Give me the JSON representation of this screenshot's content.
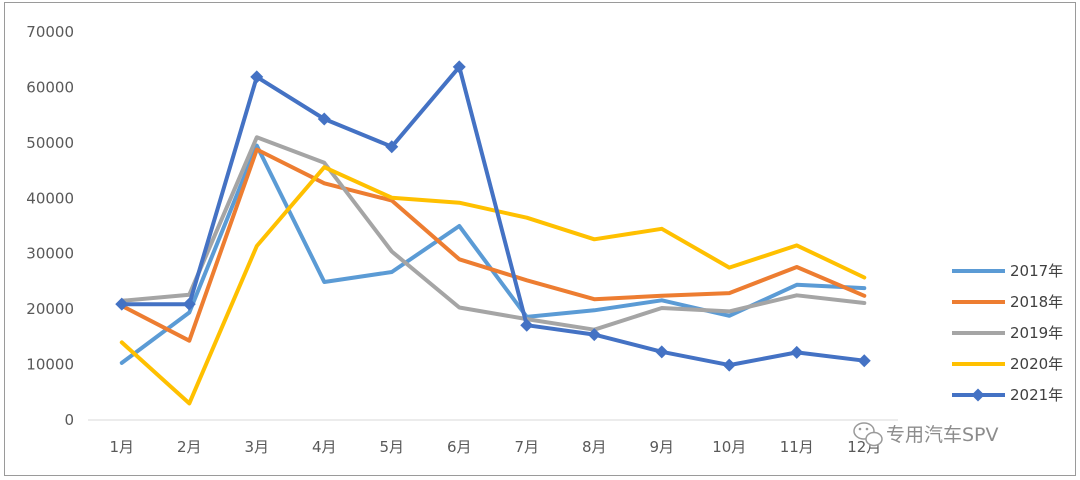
{
  "chart_data": {
    "type": "line",
    "title": "",
    "xlabel": "",
    "ylabel": "",
    "categories": [
      "1月",
      "2月",
      "3月",
      "4月",
      "5月",
      "6月",
      "7月",
      "8月",
      "9月",
      "10月",
      "11月",
      "12月"
    ],
    "ylim": [
      0,
      70000
    ],
    "yticks": [
      0,
      10000,
      20000,
      30000,
      40000,
      50000,
      60000,
      70000
    ],
    "grid": false,
    "legend_position": "right",
    "series": [
      {
        "name": "2017年",
        "color": "#5b9bd5",
        "marker": "none",
        "values": [
          10300,
          19400,
          49500,
          24900,
          26700,
          35000,
          18600,
          19800,
          21600,
          18800,
          24400,
          23800
        ]
      },
      {
        "name": "2018年",
        "color": "#ed7d31",
        "marker": "none",
        "values": [
          20600,
          14300,
          48800,
          42700,
          39600,
          29000,
          25200,
          21800,
          22400,
          22900,
          27600,
          22400
        ]
      },
      {
        "name": "2019年",
        "color": "#a5a5a5",
        "marker": "none",
        "values": [
          21500,
          22600,
          51000,
          46400,
          30400,
          20300,
          18200,
          16300,
          20200,
          19600,
          22500,
          21100
        ]
      },
      {
        "name": "2020年",
        "color": "#ffc000",
        "marker": "none",
        "values": [
          14000,
          3000,
          31400,
          45600,
          40100,
          39200,
          36500,
          32600,
          34500,
          27500,
          31500,
          25700
        ]
      },
      {
        "name": "2021年",
        "color": "#4472c4",
        "marker": "diamond",
        "values": [
          20900,
          20900,
          61900,
          54300,
          49300,
          63700,
          17100,
          15400,
          12300,
          9900,
          12200,
          10700
        ]
      }
    ]
  },
  "watermark": {
    "text": "专用汽车SPV",
    "icon": "wechat-icon"
  }
}
